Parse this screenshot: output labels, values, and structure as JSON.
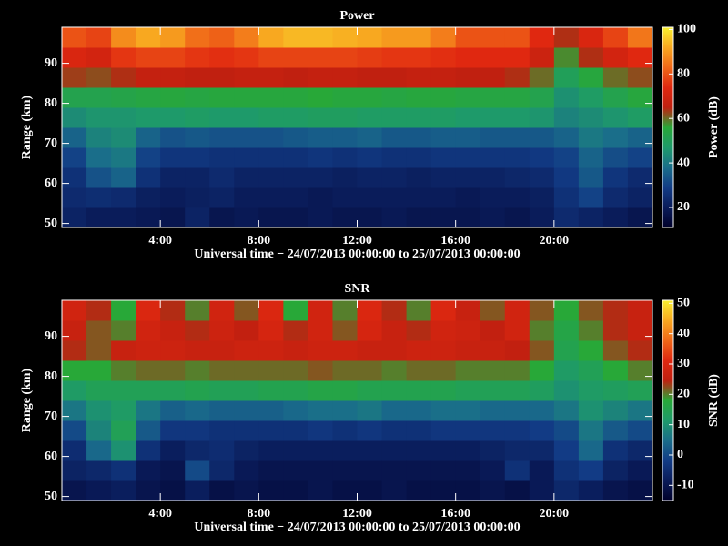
{
  "chart_data": [
    {
      "type": "heatmap",
      "title": "Power",
      "xlabel": "Universal time − 24/07/2013 00:00:00 to 25/07/2013 00:00:00",
      "ylabel": "Range (km)",
      "colorbar_label": "Power (dB)",
      "xbins": [
        0,
        1,
        2,
        3,
        4,
        5,
        6,
        7,
        8,
        9,
        10,
        11,
        12,
        13,
        14,
        15,
        16,
        17,
        18,
        19,
        20,
        21,
        22,
        23,
        24
      ],
      "ybins": [
        49,
        54,
        59,
        64,
        69,
        74,
        79,
        84,
        89,
        94,
        99
      ],
      "z": [
        [
          22,
          20,
          20,
          19,
          18,
          22,
          18,
          19,
          18,
          18,
          19,
          18,
          18,
          19,
          18,
          18,
          18,
          19,
          18,
          20,
          24,
          22,
          20,
          18
        ],
        [
          24,
          25,
          24,
          21,
          20,
          21,
          22,
          20,
          20,
          20,
          19,
          20,
          20,
          20,
          20,
          20,
          19,
          20,
          20,
          21,
          26,
          30,
          24,
          22
        ],
        [
          26,
          33,
          36,
          26,
          22,
          22,
          24,
          22,
          22,
          22,
          22,
          21,
          22,
          22,
          21,
          22,
          22,
          22,
          23,
          24,
          28,
          34,
          27,
          24
        ],
        [
          30,
          38,
          40,
          30,
          27,
          27,
          26,
          26,
          26,
          26,
          27,
          26,
          27,
          26,
          26,
          27,
          27,
          27,
          27,
          28,
          30,
          36,
          32,
          30
        ],
        [
          36,
          42,
          44,
          36,
          33,
          34,
          33,
          33,
          33,
          34,
          35,
          35,
          36,
          34,
          34,
          35,
          35,
          34,
          34,
          34,
          36,
          40,
          38,
          36
        ],
        [
          44,
          46,
          46,
          47,
          47,
          48,
          47,
          47,
          48,
          48,
          49,
          49,
          48,
          48,
          48,
          48,
          47,
          47,
          47,
          46,
          42,
          44,
          46,
          48
        ],
        [
          52,
          52,
          53,
          54,
          55,
          54,
          55,
          55,
          55,
          55,
          56,
          55,
          55,
          54,
          55,
          55,
          54,
          54,
          54,
          52,
          45,
          48,
          52,
          55
        ],
        [
          63,
          62,
          64,
          66,
          66,
          65,
          65,
          66,
          66,
          65,
          66,
          66,
          65,
          65,
          66,
          66,
          65,
          65,
          64,
          60,
          50,
          55,
          60,
          62
        ],
        [
          72,
          70,
          76,
          78,
          78,
          76,
          75,
          76,
          78,
          78,
          78,
          78,
          77,
          76,
          76,
          75,
          74,
          74,
          74,
          68,
          58,
          64,
          70,
          74
        ],
        [
          80,
          78,
          88,
          92,
          90,
          84,
          82,
          86,
          92,
          94,
          94,
          93,
          92,
          90,
          90,
          86,
          80,
          80,
          80,
          74,
          64,
          72,
          78,
          85
        ]
      ],
      "xlim": [
        0,
        24
      ],
      "ylim": [
        49,
        99
      ],
      "xticks": [
        {
          "value": 4,
          "label": "4:00"
        },
        {
          "value": 8,
          "label": "8:00"
        },
        {
          "value": 12,
          "label": "12:00"
        },
        {
          "value": 16,
          "label": "16:00"
        },
        {
          "value": 20,
          "label": "20:00"
        }
      ],
      "yticks": [
        50,
        60,
        70,
        80,
        90
      ],
      "clim": [
        11,
        101
      ],
      "cticks": [
        20,
        40,
        60,
        80,
        100
      ],
      "colormap": [
        "#00002a",
        "#0a1c5a",
        "#123c86",
        "#1a6e8a",
        "#1e9a6a",
        "#28a838",
        "#c02010",
        "#e02810",
        "#f06818",
        "#f8a820",
        "#f8f030"
      ]
    },
    {
      "type": "heatmap",
      "title": "SNR",
      "xlabel": "Universal time − 24/07/2013 00:00:00 to 25/07/2013 00:00:00",
      "ylabel": "Range (km)",
      "colorbar_label": "SNR (dB)",
      "xbins": [
        0,
        1,
        2,
        3,
        4,
        5,
        6,
        7,
        8,
        9,
        10,
        11,
        12,
        13,
        14,
        15,
        16,
        17,
        18,
        19,
        20,
        21,
        22,
        23,
        24
      ],
      "ybins": [
        49,
        54,
        59,
        64,
        69,
        74,
        79,
        84,
        89,
        94,
        99
      ],
      "z": [
        [
          -10,
          -9,
          -8,
          -10,
          -11,
          -8,
          -11,
          -10,
          -11,
          -11,
          -10,
          -11,
          -11,
          -10,
          -11,
          -11,
          -11,
          -10,
          -11,
          -9,
          -6,
          -8,
          -10,
          -11
        ],
        [
          -7,
          -6,
          -4,
          -9,
          -10,
          0,
          -6,
          -9,
          -10,
          -10,
          -10,
          -10,
          -10,
          -10,
          -10,
          -10,
          -10,
          -9,
          -4,
          -9,
          -4,
          -2,
          -7,
          -9
        ],
        [
          -5,
          4,
          10,
          -4,
          -8,
          -6,
          -5,
          -7,
          -8,
          -8,
          -8,
          -8,
          -8,
          -8,
          -8,
          -8,
          -8,
          -7,
          -6,
          -6,
          -2,
          4,
          -4,
          -6
        ],
        [
          0,
          8,
          14,
          2,
          -3,
          -3,
          -4,
          -4,
          -4,
          -4,
          -3,
          -4,
          -3,
          -4,
          -4,
          -3,
          -3,
          -3,
          -3,
          -2,
          0,
          6,
          2,
          0
        ],
        [
          6,
          10,
          12,
          6,
          3,
          4,
          3,
          3,
          3,
          4,
          5,
          5,
          6,
          4,
          4,
          5,
          5,
          4,
          4,
          4,
          6,
          10,
          8,
          6
        ],
        [
          12,
          14,
          14,
          14,
          14,
          15,
          14,
          14,
          15,
          15,
          16,
          16,
          15,
          15,
          15,
          15,
          14,
          14,
          14,
          13,
          10,
          12,
          13,
          14
        ],
        [
          18,
          18,
          20,
          21,
          21,
          20,
          21,
          21,
          21,
          21,
          22,
          21,
          21,
          20,
          21,
          21,
          20,
          20,
          20,
          18,
          12,
          14,
          18,
          20
        ],
        [
          24,
          22,
          26,
          27,
          27,
          26,
          26,
          27,
          27,
          26,
          27,
          27,
          26,
          26,
          27,
          27,
          26,
          26,
          25,
          22,
          15,
          18,
          22,
          24
        ],
        [
          26,
          22,
          20,
          28,
          26,
          24,
          27,
          25,
          29,
          24,
          28,
          22,
          29,
          26,
          24,
          28,
          27,
          25,
          28,
          20,
          16,
          20,
          24,
          26
        ],
        [
          28,
          24,
          18,
          30,
          24,
          20,
          28,
          22,
          30,
          18,
          28,
          20,
          30,
          24,
          20,
          30,
          26,
          22,
          28,
          22,
          18,
          22,
          24,
          26
        ]
      ],
      "xlim": [
        0,
        24
      ],
      "ylim": [
        49,
        99
      ],
      "xticks": [
        {
          "value": 4,
          "label": "4:00"
        },
        {
          "value": 8,
          "label": "8:00"
        },
        {
          "value": 12,
          "label": "12:00"
        },
        {
          "value": 16,
          "label": "16:00"
        },
        {
          "value": 20,
          "label": "20:00"
        }
      ],
      "yticks": [
        50,
        60,
        70,
        80,
        90
      ],
      "clim": [
        -15,
        51
      ],
      "cticks": [
        -10,
        0,
        10,
        20,
        30,
        40,
        50
      ],
      "colormap": [
        "#00002a",
        "#0a1c5a",
        "#123c86",
        "#1a6e8a",
        "#1e9a6a",
        "#28a838",
        "#c02010",
        "#e02810",
        "#f06818",
        "#f8a820",
        "#f8f030"
      ]
    }
  ]
}
